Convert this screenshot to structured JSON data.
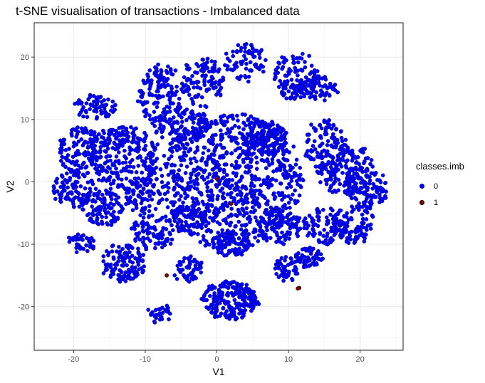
{
  "chart_data": {
    "type": "scatter",
    "title": "t-SNE visualisation of transactions - Imbalanced data",
    "xlabel": "V1",
    "ylabel": "V2",
    "xlim": [
      -25.5,
      26
    ],
    "ylim": [
      -27,
      25.5
    ],
    "x_ticks": [
      -20,
      -10,
      0,
      10,
      20
    ],
    "y_ticks": [
      -20,
      -10,
      0,
      10,
      20
    ],
    "grid": true,
    "legend_position": "right",
    "legend": {
      "title": "classes.imb",
      "entries": [
        {
          "label": "0",
          "color": "#0000ff",
          "outline": "#00008b"
        },
        {
          "label": "1",
          "color": "#8b0000",
          "outline": "#000000"
        }
      ]
    },
    "series": [
      {
        "name": "0",
        "color": "#0000ff",
        "clusters": [
          {
            "cx": 2,
            "cy": 0,
            "rx": 10,
            "ry": 11,
            "n": 900
          },
          {
            "cx": -13,
            "cy": 4,
            "rx": 5,
            "ry": 5,
            "n": 260
          },
          {
            "cx": -19,
            "cy": 5,
            "rx": 3,
            "ry": 4,
            "n": 130
          },
          {
            "cx": -20,
            "cy": -1,
            "rx": 3,
            "ry": 3,
            "n": 90
          },
          {
            "cx": -16,
            "cy": -4,
            "rx": 3,
            "ry": 3,
            "n": 110
          },
          {
            "cx": -8,
            "cy": 14,
            "rx": 3,
            "ry": 5,
            "n": 130
          },
          {
            "cx": -2,
            "cy": 16,
            "rx": 3,
            "ry": 4,
            "n": 110
          },
          {
            "cx": -17,
            "cy": 12,
            "rx": 3,
            "ry": 2,
            "n": 70
          },
          {
            "cx": -5,
            "cy": 9,
            "rx": 4,
            "ry": 3,
            "n": 110
          },
          {
            "cx": 4,
            "cy": 19,
            "rx": 3,
            "ry": 3,
            "n": 70
          },
          {
            "cx": 11,
            "cy": 17,
            "rx": 3,
            "ry": 4,
            "n": 120
          },
          {
            "cx": 14,
            "cy": 15,
            "rx": 3,
            "ry": 2,
            "n": 70
          },
          {
            "cx": 15,
            "cy": 6,
            "rx": 3,
            "ry": 4,
            "n": 110
          },
          {
            "cx": 18,
            "cy": 2,
            "rx": 4,
            "ry": 4,
            "n": 150
          },
          {
            "cx": 21,
            "cy": -1,
            "rx": 3,
            "ry": 3,
            "n": 110
          },
          {
            "cx": 19,
            "cy": -7,
            "rx": 3,
            "ry": 3,
            "n": 100
          },
          {
            "cx": 15,
            "cy": -7,
            "rx": 3,
            "ry": 3,
            "n": 90
          },
          {
            "cx": 13,
            "cy": -12,
            "rx": 2,
            "ry": 1.5,
            "n": 60
          },
          {
            "cx": 9,
            "cy": -7,
            "rx": 3,
            "ry": 3,
            "n": 90
          },
          {
            "cx": 2,
            "cy": -10,
            "rx": 3,
            "ry": 2,
            "n": 80
          },
          {
            "cx": 2,
            "cy": -19,
            "rx": 4,
            "ry": 3,
            "n": 210
          },
          {
            "cx": 10,
            "cy": -14,
            "rx": 2,
            "ry": 2,
            "n": 50
          },
          {
            "cx": -4,
            "cy": -14,
            "rx": 2,
            "ry": 2,
            "n": 60
          },
          {
            "cx": -13,
            "cy": -13,
            "rx": 3,
            "ry": 3,
            "n": 120
          },
          {
            "cx": -9,
            "cy": -8,
            "rx": 3,
            "ry": 3,
            "n": 90
          },
          {
            "cx": -4,
            "cy": -6,
            "rx": 3,
            "ry": 2,
            "n": 70
          },
          {
            "cx": -8,
            "cy": -21,
            "rx": 1.5,
            "ry": 1.5,
            "n": 30
          },
          {
            "cx": -19,
            "cy": -10,
            "rx": 2,
            "ry": 1.5,
            "n": 40
          },
          {
            "cx": -10,
            "cy": -2,
            "rx": 3,
            "ry": 3,
            "n": 90
          },
          {
            "cx": 7,
            "cy": 7,
            "rx": 3,
            "ry": 3,
            "n": 120
          }
        ]
      },
      {
        "name": "1",
        "color": "#8b0000",
        "points": [
          [
            -7,
            -15
          ],
          [
            11.5,
            -17
          ],
          [
            11.3,
            -17.1
          ],
          [
            0,
            0.5
          ],
          [
            2,
            -3.5
          ]
        ]
      }
    ]
  }
}
